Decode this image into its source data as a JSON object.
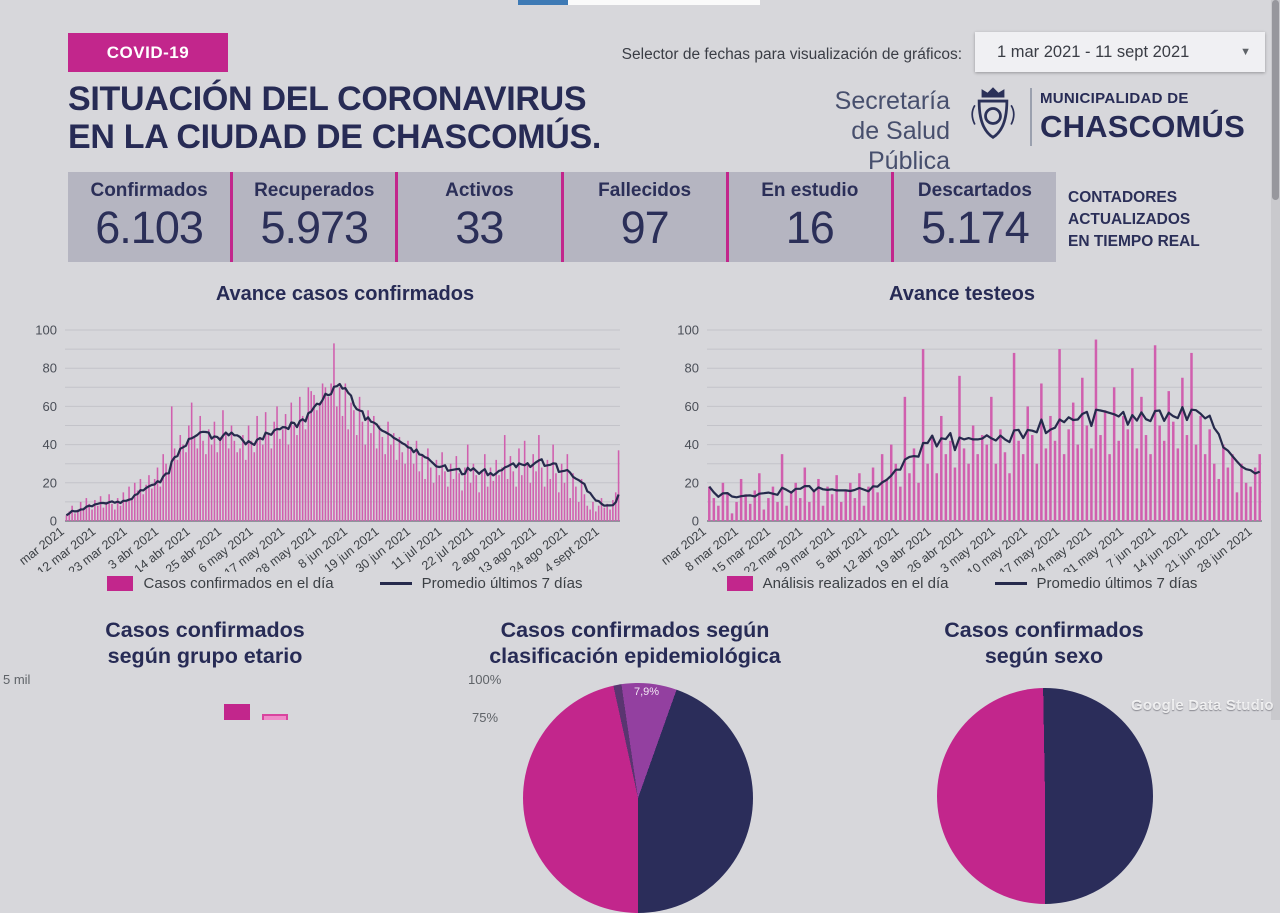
{
  "colors": {
    "magenta": "#c2268c",
    "bar_pink": "#d05fae",
    "navy_text": "#272b55",
    "navy_line": "#262a4c",
    "pie_navy": "#2b2d5a",
    "pie_purple": "#9340a0",
    "pie_dark_purple": "#5a3570",
    "counters_band": "#b5b5c1",
    "background": "#d7d7db",
    "gridline": "#c3c3c9"
  },
  "header": {
    "badge": "COVID-19",
    "title_line1": "SITUACIÓN DEL CORONAVIRUS",
    "title_line2": "EN LA CIUDAD DE CHASCOMÚS.",
    "selector_label": "Selector de fechas para visualización de gráficos:",
    "date_range": "1 mar 2021 - 11 sept 2021",
    "org_line1": "Secretaría",
    "org_line2": "de Salud Pública",
    "muni_line1": "MUNICIPALIDAD DE",
    "muni_line2": "CHASCOMÚS"
  },
  "counters": {
    "items": [
      {
        "label": "Confirmados",
        "value": "6.103"
      },
      {
        "label": "Recuperados",
        "value": "5.973"
      },
      {
        "label": "Activos",
        "value": "33"
      },
      {
        "label": "Fallecidos",
        "value": "97"
      },
      {
        "label": "En estudio",
        "value": "16"
      },
      {
        "label": "Descartados",
        "value": "5.174"
      }
    ],
    "note_line1": "CONTADORES",
    "note_line2": "ACTUALIZADOS",
    "note_line3": "EN TIEMPO REAL"
  },
  "bottom": {
    "sections": [
      {
        "line1": "Casos confirmados",
        "line2": "según grupo etario"
      },
      {
        "line1": "Casos confirmados según",
        "line2": "clasificación epidemiológica"
      },
      {
        "line1": "Casos confirmados",
        "line2": "según sexo"
      }
    ],
    "etario_axis_label": "5 mil",
    "epi_axis_label_100": "100%",
    "epi_axis_label_75": "75%",
    "pie_slice_label": "7,9%",
    "watermark": "Google Data Studio"
  },
  "chart_data": [
    {
      "id": "confirmados",
      "type": "bar",
      "title": "Avance casos confirmados",
      "ylim": [
        0,
        100
      ],
      "y_ticks": [
        0,
        20,
        40,
        60,
        80,
        100
      ],
      "grid_step": 10,
      "x_tick_labels": [
        "mar 2021",
        "12 mar 2021",
        "23 mar 2021",
        "3 abr 2021",
        "14 abr 2021",
        "25 abr 2021",
        "6 may 2021",
        "17 may 2021",
        "28 may 2021",
        "8 jun 2021",
        "19 jun 2021",
        "30 jun 2021",
        "11 jul 2021",
        "22 jul 2021",
        "2 ago 2021",
        "13 ago 2021",
        "24 ago 2021",
        "4 sept 2021"
      ],
      "x_tick_interval_days": 11,
      "legend": [
        {
          "label": "Casos confirmados en el día",
          "type": "bar"
        },
        {
          "label": "Promedio últimos 7 días",
          "type": "line"
        }
      ],
      "series": [
        {
          "name": "Casos confirmados en el día",
          "values": [
            3,
            5,
            8,
            4,
            6,
            10,
            7,
            12,
            9,
            6,
            11,
            8,
            13,
            7,
            10,
            14,
            9,
            6,
            12,
            8,
            15,
            10,
            18,
            12,
            20,
            16,
            22,
            14,
            19,
            24,
            17,
            22,
            28,
            18,
            35,
            30,
            25,
            60,
            38,
            32,
            45,
            40,
            36,
            50,
            62,
            44,
            38,
            55,
            42,
            35,
            48,
            40,
            52,
            36,
            44,
            58,
            46,
            38,
            50,
            42,
            36,
            38,
            45,
            32,
            50,
            42,
            36,
            55,
            44,
            40,
            57,
            46,
            38,
            52,
            60,
            43,
            48,
            56,
            40,
            62,
            50,
            45,
            65,
            55,
            48,
            70,
            68,
            66,
            58,
            62,
            72,
            70,
            65,
            72,
            93,
            60,
            70,
            55,
            72,
            48,
            62,
            58,
            45,
            65,
            52,
            40,
            58,
            46,
            55,
            38,
            50,
            44,
            35,
            52,
            40,
            46,
            32,
            44,
            36,
            30,
            42,
            38,
            30,
            42,
            26,
            34,
            22,
            38,
            28,
            20,
            32,
            24,
            36,
            26,
            18,
            30,
            22,
            34,
            25,
            16,
            28,
            40,
            20,
            30,
            24,
            15,
            26,
            35,
            18,
            28,
            21,
            32,
            24,
            28,
            45,
            22,
            34,
            26,
            18,
            38,
            24,
            42,
            30,
            20,
            35,
            26,
            45,
            28,
            18,
            32,
            22,
            40,
            25,
            15,
            30,
            20,
            35,
            12,
            25,
            18,
            10,
            22,
            14,
            8,
            6,
            10,
            5,
            8,
            12,
            7,
            9,
            6,
            11,
            15,
            37
          ]
        },
        {
          "name": "Promedio últimos 7 días",
          "derived": "trailing_7_day_mean"
        }
      ]
    },
    {
      "id": "testeos",
      "type": "bar",
      "title": "Avance testeos",
      "ylim": [
        0,
        100
      ],
      "y_ticks": [
        0,
        20,
        40,
        60,
        80,
        100
      ],
      "grid_step": 10,
      "x_tick_labels": [
        "mar 2021",
        "8 mar 2021",
        "15 mar 2021",
        "22 mar 2021",
        "29 mar 2021",
        "5 abr 2021",
        "12 abr 2021",
        "19 abr 2021",
        "26 abr 2021",
        "3 may 2021",
        "10 may 2021",
        "17 may 2021",
        "24 may 2021",
        "31 may 2021",
        "7 jun 2021",
        "14 jun 2021",
        "21 jun 2021",
        "28 jun 2021"
      ],
      "x_tick_interval_days": 7,
      "legend": [
        {
          "label": "Análisis realizados en el día",
          "type": "bar"
        },
        {
          "label": "Promedio últimos 7 días",
          "type": "line"
        }
      ],
      "series": [
        {
          "name": "Análisis realizados en el día",
          "values": [
            18,
            12,
            8,
            20,
            15,
            4,
            10,
            22,
            14,
            9,
            16,
            25,
            6,
            12,
            18,
            10,
            35,
            8,
            15,
            20,
            12,
            28,
            10,
            16,
            22,
            8,
            18,
            14,
            24,
            10,
            16,
            20,
            12,
            25,
            8,
            18,
            28,
            15,
            35,
            22,
            40,
            30,
            18,
            65,
            25,
            38,
            20,
            90,
            30,
            45,
            25,
            55,
            35,
            42,
            28,
            76,
            38,
            30,
            50,
            35,
            45,
            40,
            65,
            30,
            48,
            36,
            25,
            88,
            42,
            35,
            60,
            45,
            30,
            72,
            38,
            55,
            42,
            90,
            35,
            48,
            62,
            40,
            75,
            50,
            38,
            95,
            45,
            58,
            35,
            70,
            42,
            55,
            48,
            80,
            38,
            65,
            45,
            35,
            92,
            50,
            42,
            68,
            52,
            38,
            75,
            45,
            88,
            40,
            55,
            35,
            48,
            30,
            22,
            40,
            28,
            35,
            15,
            30,
            20,
            18,
            28,
            35
          ]
        },
        {
          "name": "Promedio últimos 7 días",
          "derived": "trailing_7_day_mean"
        }
      ]
    },
    {
      "id": "clasificacion",
      "type": "pie",
      "title": "Casos confirmados según clasificación epidemiológica",
      "partially_visible": true,
      "labeled_slice": {
        "label": "7,9%",
        "value_pct": 7.9
      },
      "conic_stops": [
        [
          "#9340a0",
          0,
          19.6
        ],
        [
          "#2b2d5a",
          19.6,
          180
        ],
        [
          "#c2268c",
          180,
          347.6
        ],
        [
          "#5a3570",
          347.6,
          351.7
        ],
        [
          "#9340a0",
          351.7,
          360
        ]
      ]
    },
    {
      "id": "sexo",
      "type": "pie",
      "title": "Casos confirmados según sexo",
      "partially_visible": true,
      "conic_stops": [
        [
          "#2b2d5a",
          0,
          180
        ],
        [
          "#c2268c",
          180,
          359
        ],
        [
          "#2b2d5a",
          359,
          360
        ]
      ]
    },
    {
      "id": "grupo_etario",
      "type": "bar",
      "title": "Casos confirmados según grupo etario",
      "partially_visible": true,
      "visible_axis_label": "5 mil"
    }
  ]
}
